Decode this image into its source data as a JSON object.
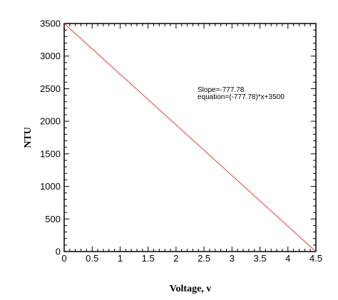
{
  "chart_data": {
    "type": "line",
    "title": "",
    "xlabel": "Voltage, v",
    "ylabel": "NTU",
    "xlim": [
      0,
      4.5
    ],
    "ylim": [
      0,
      3500
    ],
    "x_ticks": [
      0,
      0.5,
      1,
      1.5,
      2,
      2.5,
      3,
      3.5,
      4,
      4.5
    ],
    "x_tick_labels": [
      "0",
      "0.5",
      "1",
      "1.5",
      "2",
      "2.5",
      "3",
      "3.5",
      "4",
      "4.5"
    ],
    "y_ticks": [
      0,
      500,
      1000,
      1500,
      2000,
      2500,
      3000,
      3500
    ],
    "y_tick_labels": [
      "0",
      "500",
      "1000",
      "1500",
      "2000",
      "2500",
      "3000",
      "3500"
    ],
    "grid": false,
    "legend": "none",
    "series": [
      {
        "color": "#e8413a",
        "x": [
          0,
          4.5
        ],
        "y": [
          3500,
          0
        ]
      }
    ],
    "annotations": [
      "Slope=-777.78",
      "equation=(-777.78)*x+3500"
    ]
  }
}
